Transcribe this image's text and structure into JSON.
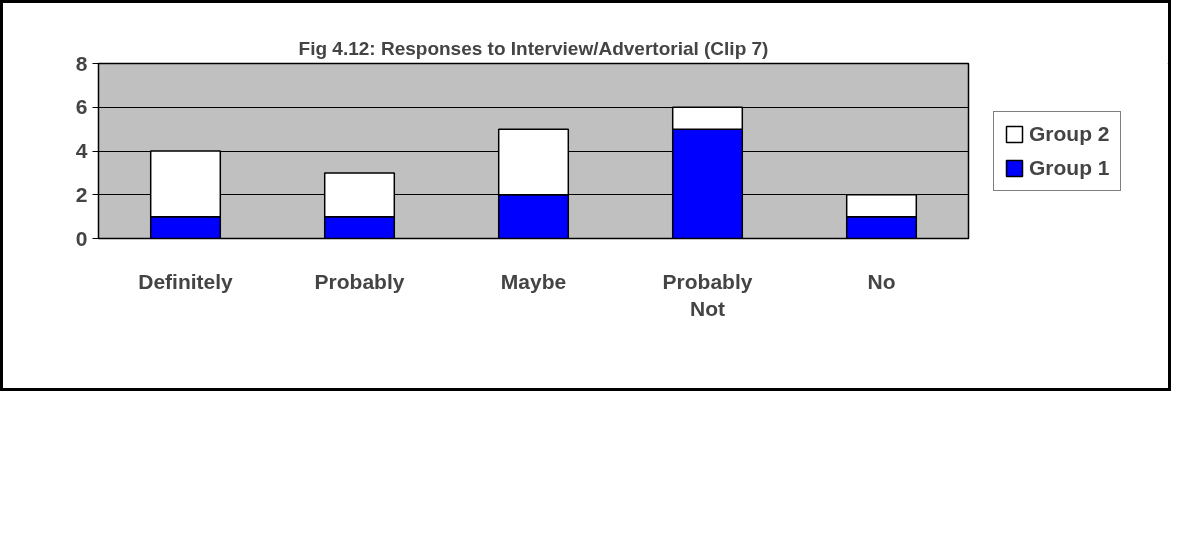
{
  "chart_data": {
    "type": "bar",
    "title": "Fig 4.12: Responses to Interview/Advertorial (Clip 7)",
    "categories": [
      "Definitely",
      "Probably",
      "Maybe",
      "Probably Not",
      "No"
    ],
    "stacked": true,
    "series": [
      {
        "name": "Group 1",
        "color": "#0000ff",
        "values": [
          1,
          1,
          2,
          5,
          1
        ]
      },
      {
        "name": "Group 2",
        "color": "#ffffff",
        "values": [
          3,
          2,
          3,
          1,
          1
        ]
      }
    ],
    "ylim": [
      0,
      8
    ],
    "yticks": [
      0,
      2,
      4,
      6,
      8
    ],
    "grid": "y",
    "legend": "right"
  }
}
